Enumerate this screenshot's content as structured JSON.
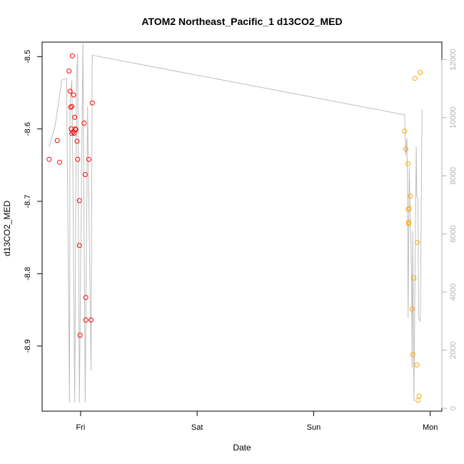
{
  "chart_data": {
    "type": "scatter",
    "title": "ATOM2 Northeast_Pacific_1 d13CO2_MED",
    "xlabel": "Date",
    "ylabel": "d13CO2_MED",
    "x_unit": "days since Thu 00:00",
    "x_ticks": [
      {
        "value": 1,
        "label": "Fri"
      },
      {
        "value": 2,
        "label": "Sat"
      },
      {
        "value": 3,
        "label": "Sun"
      },
      {
        "value": 4,
        "label": "Mon"
      }
    ],
    "xlim": [
      0.67,
      4.1
    ],
    "ylim": [
      -8.99,
      -8.48
    ],
    "y_ticks": [
      -8.9,
      -8.8,
      -8.7,
      -8.6,
      -8.5
    ],
    "y2lim": [
      -100,
      12600
    ],
    "y2_ticks": [
      0,
      2000,
      4000,
      6000,
      8000,
      10000,
      12000
    ],
    "grid": false,
    "series": [
      {
        "color": "#ff0000",
        "points": [
          [
            0.73,
            -8.642
          ],
          [
            0.8,
            -8.616
          ],
          [
            0.82,
            -8.646
          ],
          [
            0.9,
            -8.52
          ],
          [
            0.91,
            -8.548
          ],
          [
            0.915,
            -8.57
          ],
          [
            0.925,
            -8.569
          ],
          [
            0.93,
            -8.499
          ],
          [
            0.92,
            -8.6
          ],
          [
            0.925,
            -8.606
          ],
          [
            0.935,
            -8.604
          ],
          [
            0.945,
            -8.606
          ],
          [
            0.94,
            -8.553
          ],
          [
            0.95,
            -8.584
          ],
          [
            0.955,
            -8.6
          ],
          [
            0.96,
            -8.601
          ],
          [
            0.97,
            -8.617
          ],
          [
            0.975,
            -8.642
          ],
          [
            0.99,
            -8.699
          ],
          [
            0.99,
            -8.761
          ],
          [
            0.995,
            -8.885
          ],
          [
            1.03,
            -8.592
          ],
          [
            1.04,
            -8.663
          ],
          [
            1.045,
            -8.833
          ],
          [
            1.045,
            -8.864
          ],
          [
            1.07,
            -8.642
          ],
          [
            1.09,
            -8.864
          ],
          [
            1.1,
            -8.564
          ]
        ]
      },
      {
        "color": "#ffa500",
        "points": [
          [
            3.78,
            -8.603
          ],
          [
            3.79,
            -8.628
          ],
          [
            3.81,
            -8.648
          ],
          [
            3.81,
            -8.711
          ],
          [
            3.815,
            -8.729
          ],
          [
            3.815,
            -8.731
          ],
          [
            3.82,
            -8.71
          ],
          [
            3.83,
            -8.693
          ],
          [
            3.845,
            -8.849
          ],
          [
            3.85,
            -8.912
          ],
          [
            3.86,
            -8.806
          ],
          [
            3.87,
            -8.53
          ],
          [
            3.885,
            -8.926
          ],
          [
            3.89,
            -8.757
          ],
          [
            3.895,
            -8.975
          ],
          [
            3.905,
            -8.969
          ],
          [
            3.915,
            -8.522
          ]
        ]
      }
    ],
    "line_series": {
      "color": "#bebebe",
      "axis": "right",
      "points": [
        [
          0.73,
          9000
        ],
        [
          0.78,
          9700
        ],
        [
          0.84,
          11300
        ],
        [
          0.88,
          11350
        ],
        [
          0.905,
          200
        ],
        [
          0.91,
          10500
        ],
        [
          0.925,
          11300
        ],
        [
          0.935,
          7500
        ],
        [
          0.95,
          200
        ],
        [
          0.965,
          11300
        ],
        [
          0.975,
          12200
        ],
        [
          0.99,
          200
        ],
        [
          1.02,
          12600
        ],
        [
          1.04,
          200
        ],
        [
          1.06,
          10400
        ],
        [
          1.09,
          1300
        ],
        [
          1.1,
          12150
        ],
        [
          3.78,
          10100
        ],
        [
          3.79,
          8700
        ],
        [
          3.8,
          9300
        ],
        [
          3.805,
          7700
        ],
        [
          3.81,
          3100
        ],
        [
          3.82,
          8300
        ],
        [
          3.83,
          6500
        ],
        [
          3.84,
          4400
        ],
        [
          3.845,
          1400
        ],
        [
          3.85,
          6100
        ],
        [
          3.86,
          250
        ],
        [
          3.88,
          9000
        ],
        [
          3.885,
          7300
        ],
        [
          3.895,
          7200
        ],
        [
          3.9,
          3100
        ],
        [
          3.915,
          3000
        ],
        [
          3.93,
          10300
        ]
      ]
    }
  }
}
